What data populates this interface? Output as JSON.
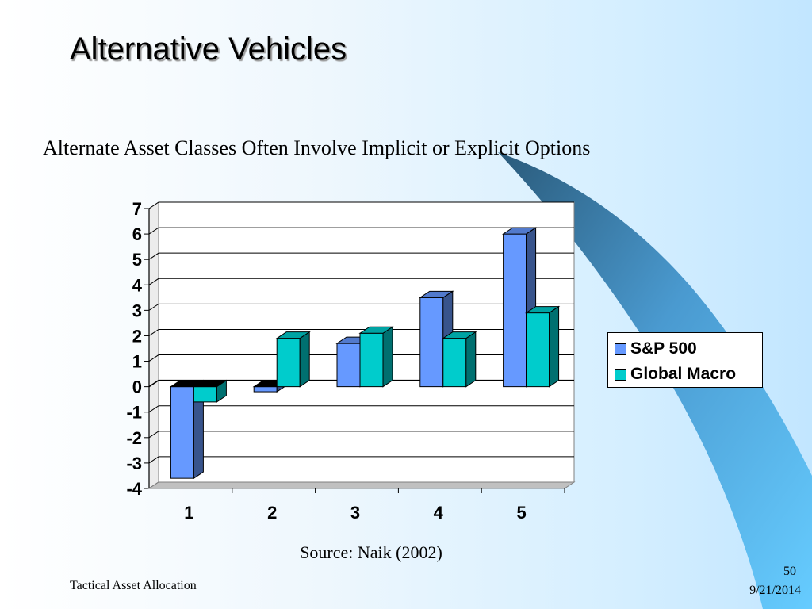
{
  "slide": {
    "title": "Alternative Vehicles",
    "subtitle": "Alternate Asset Classes Often Involve Implicit or Explicit Options",
    "source": "Source: Naik (2002)",
    "footer": "Tactical Asset Allocation",
    "page_number": "50",
    "date": "9/21/2014"
  },
  "colors": {
    "sp500": "#6699ff",
    "global_macro": "#00cccc"
  },
  "chart_data": {
    "type": "bar",
    "categories": [
      "1",
      "2",
      "3",
      "4",
      "5"
    ],
    "series": [
      {
        "name": "S&P 500",
        "values": [
          -3.6,
          -0.2,
          1.7,
          3.5,
          6.0
        ]
      },
      {
        "name": "Global Macro",
        "values": [
          -0.6,
          1.9,
          2.1,
          1.9,
          2.9
        ]
      }
    ],
    "ylim": [
      -4,
      7
    ],
    "yticks": [
      7,
      6,
      5,
      4,
      3,
      2,
      1,
      0,
      -1,
      -2,
      -3,
      -4
    ],
    "grid": true,
    "style": "3d",
    "legend_position": "right"
  }
}
